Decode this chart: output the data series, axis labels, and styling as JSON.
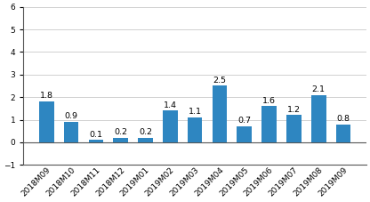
{
  "categories": [
    "2018M09",
    "2018M10",
    "2018M11",
    "2018M12",
    "2019M01",
    "2019M02",
    "2019M03",
    "2019M04",
    "2019M05",
    "2019M06",
    "2019M07",
    "2019M08",
    "2019M09"
  ],
  "values": [
    1.8,
    0.9,
    0.1,
    0.2,
    0.2,
    1.4,
    1.1,
    2.5,
    0.7,
    1.6,
    1.2,
    2.1,
    0.8
  ],
  "bar_color": "#2e86c1",
  "ylim": [
    -1,
    6
  ],
  "yticks": [
    -1,
    0,
    1,
    2,
    3,
    4,
    5,
    6
  ],
  "background_color": "#ffffff",
  "grid_color": "#d0d0d0",
  "tick_fontsize": 6.5,
  "bar_label_fontsize": 6.8
}
